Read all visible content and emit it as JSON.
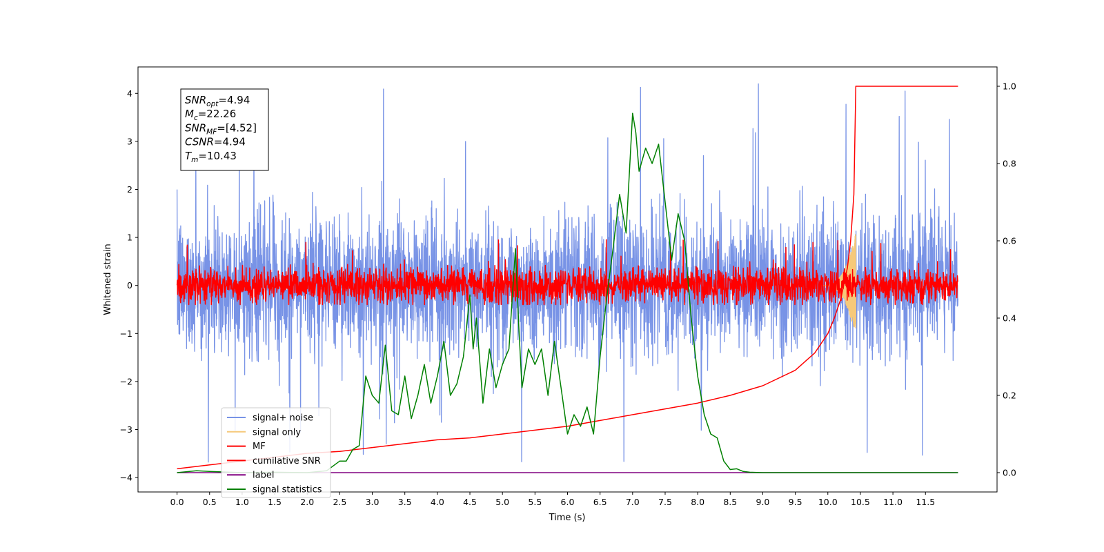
{
  "chart_data": {
    "type": "line",
    "xlabel": "Time (s)",
    "ylabel": "Whitened strain",
    "xlim": [
      -0.6,
      12.6
    ],
    "ylim": [
      -4.3,
      4.55
    ],
    "y2lim": [
      -0.05,
      1.05
    ],
    "x_ticks": [
      0.0,
      0.5,
      1.0,
      1.5,
      2.0,
      2.5,
      3.0,
      3.5,
      4.0,
      4.5,
      5.0,
      5.5,
      6.0,
      6.5,
      7.0,
      7.5,
      8.0,
      8.5,
      9.0,
      9.5,
      10.0,
      10.5,
      11.0,
      11.5
    ],
    "x_tick_labels": [
      "0.0",
      "0.5",
      "1.0",
      "1.5",
      "2.0",
      "2.5",
      "3.0",
      "3.5",
      "4.0",
      "4.5",
      "5.0",
      "5.5",
      "6.0",
      "6.5",
      "7.0",
      "7.5",
      "8.0",
      "8.5",
      "9.0",
      "9.5",
      "10.0",
      "10.5",
      "11.0",
      "11.5"
    ],
    "y_ticks": [
      -4,
      -3,
      -2,
      -1,
      0,
      1,
      2,
      3,
      4
    ],
    "y_tick_labels": [
      "−4",
      "−3",
      "−2",
      "−1",
      "0",
      "1",
      "2",
      "3",
      "4"
    ],
    "y2_ticks": [
      0.0,
      0.2,
      0.4,
      0.6,
      0.8,
      1.0
    ],
    "y2_tick_labels": [
      "0.0",
      "0.2",
      "0.4",
      "0.6",
      "0.8",
      "1.0"
    ],
    "grid": false,
    "legend_position": "lower-left",
    "annotation": {
      "lines": [
        {
          "base": "SNR",
          "sub": "opt",
          "value": "=4.94"
        },
        {
          "base": "M",
          "sub": "c",
          "value": "=22.26"
        },
        {
          "base": "SNR",
          "sub": "MF",
          "value": "=[4.52]"
        },
        {
          "base": "CSNR",
          "sub": "",
          "value": "=4.94"
        },
        {
          "base": "T",
          "sub": "m",
          "value": "=10.43"
        }
      ]
    },
    "series": [
      {
        "name": "signal+ noise",
        "color": "#7893e6",
        "axis": "left",
        "kind": "noise",
        "x_range": [
          0,
          12.0
        ],
        "typical_amplitude": 1.0,
        "peak_range": [
          -3.8,
          4.2
        ]
      },
      {
        "name": "signal only",
        "color": "#f6c97a",
        "axis": "left",
        "kind": "chirp",
        "x_range": [
          9.9,
          10.43
        ],
        "peak_amplitude": 1.1
      },
      {
        "name": "MF",
        "color": "#ff0000",
        "axis": "left",
        "kind": "noise",
        "x_range": [
          0,
          12.0
        ],
        "typical_amplitude": 0.25,
        "peak_range": [
          -0.4,
          1.0
        ]
      },
      {
        "name": "cumilative SNR",
        "color": "#ff0000",
        "axis": "right",
        "kind": "line",
        "x": [
          0,
          0.5,
          1.0,
          1.5,
          2.0,
          2.5,
          3.0,
          3.5,
          4.0,
          4.5,
          5.0,
          5.5,
          6.0,
          6.5,
          7.0,
          7.5,
          8.0,
          8.5,
          9.0,
          9.5,
          9.8,
          10.0,
          10.1,
          10.2,
          10.3,
          10.35,
          10.4,
          10.43,
          11.0,
          12.0
        ],
        "y": [
          0.01,
          0.02,
          0.03,
          0.04,
          0.05,
          0.055,
          0.065,
          0.075,
          0.085,
          0.09,
          0.1,
          0.11,
          0.12,
          0.135,
          0.15,
          0.165,
          0.18,
          0.2,
          0.225,
          0.265,
          0.31,
          0.36,
          0.4,
          0.45,
          0.53,
          0.6,
          0.72,
          1.0,
          1.0,
          1.0
        ]
      },
      {
        "name": "label",
        "color": "#800080",
        "axis": "right",
        "kind": "line",
        "x": [
          0,
          12.0
        ],
        "y": [
          0.0,
          0.0
        ]
      },
      {
        "name": "signal statistics",
        "color": "#008000",
        "axis": "right",
        "kind": "line",
        "x": [
          0,
          0.3,
          0.5,
          1.0,
          1.5,
          2.0,
          2.3,
          2.5,
          2.6,
          2.7,
          2.8,
          2.9,
          3.0,
          3.1,
          3.2,
          3.3,
          3.4,
          3.5,
          3.6,
          3.7,
          3.8,
          3.9,
          4.0,
          4.1,
          4.2,
          4.3,
          4.4,
          4.5,
          4.55,
          4.6,
          4.7,
          4.8,
          4.9,
          5.0,
          5.1,
          5.2,
          5.25,
          5.3,
          5.4,
          5.5,
          5.6,
          5.7,
          5.8,
          5.9,
          6.0,
          6.1,
          6.2,
          6.3,
          6.4,
          6.5,
          6.6,
          6.7,
          6.8,
          6.9,
          7.0,
          7.05,
          7.1,
          7.2,
          7.3,
          7.4,
          7.5,
          7.6,
          7.7,
          7.8,
          7.9,
          8.0,
          8.1,
          8.2,
          8.3,
          8.4,
          8.5,
          8.6,
          8.7,
          8.8,
          9.0,
          10.0,
          11.0,
          12.0
        ],
        "y": [
          0.0,
          0.005,
          0.003,
          0.0,
          0.001,
          0.0,
          0.005,
          0.03,
          0.03,
          0.06,
          0.07,
          0.25,
          0.2,
          0.18,
          0.33,
          0.16,
          0.15,
          0.25,
          0.14,
          0.2,
          0.28,
          0.18,
          0.25,
          0.34,
          0.2,
          0.23,
          0.3,
          0.46,
          0.32,
          0.4,
          0.18,
          0.32,
          0.22,
          0.28,
          0.32,
          0.58,
          0.38,
          0.22,
          0.32,
          0.28,
          0.32,
          0.2,
          0.34,
          0.22,
          0.1,
          0.15,
          0.12,
          0.17,
          0.1,
          0.3,
          0.45,
          0.58,
          0.72,
          0.62,
          0.93,
          0.88,
          0.78,
          0.84,
          0.8,
          0.85,
          0.7,
          0.55,
          0.67,
          0.6,
          0.4,
          0.25,
          0.15,
          0.1,
          0.09,
          0.03,
          0.008,
          0.01,
          0.003,
          0.001,
          0.0,
          0.0,
          0.0,
          0.0
        ]
      }
    ]
  }
}
